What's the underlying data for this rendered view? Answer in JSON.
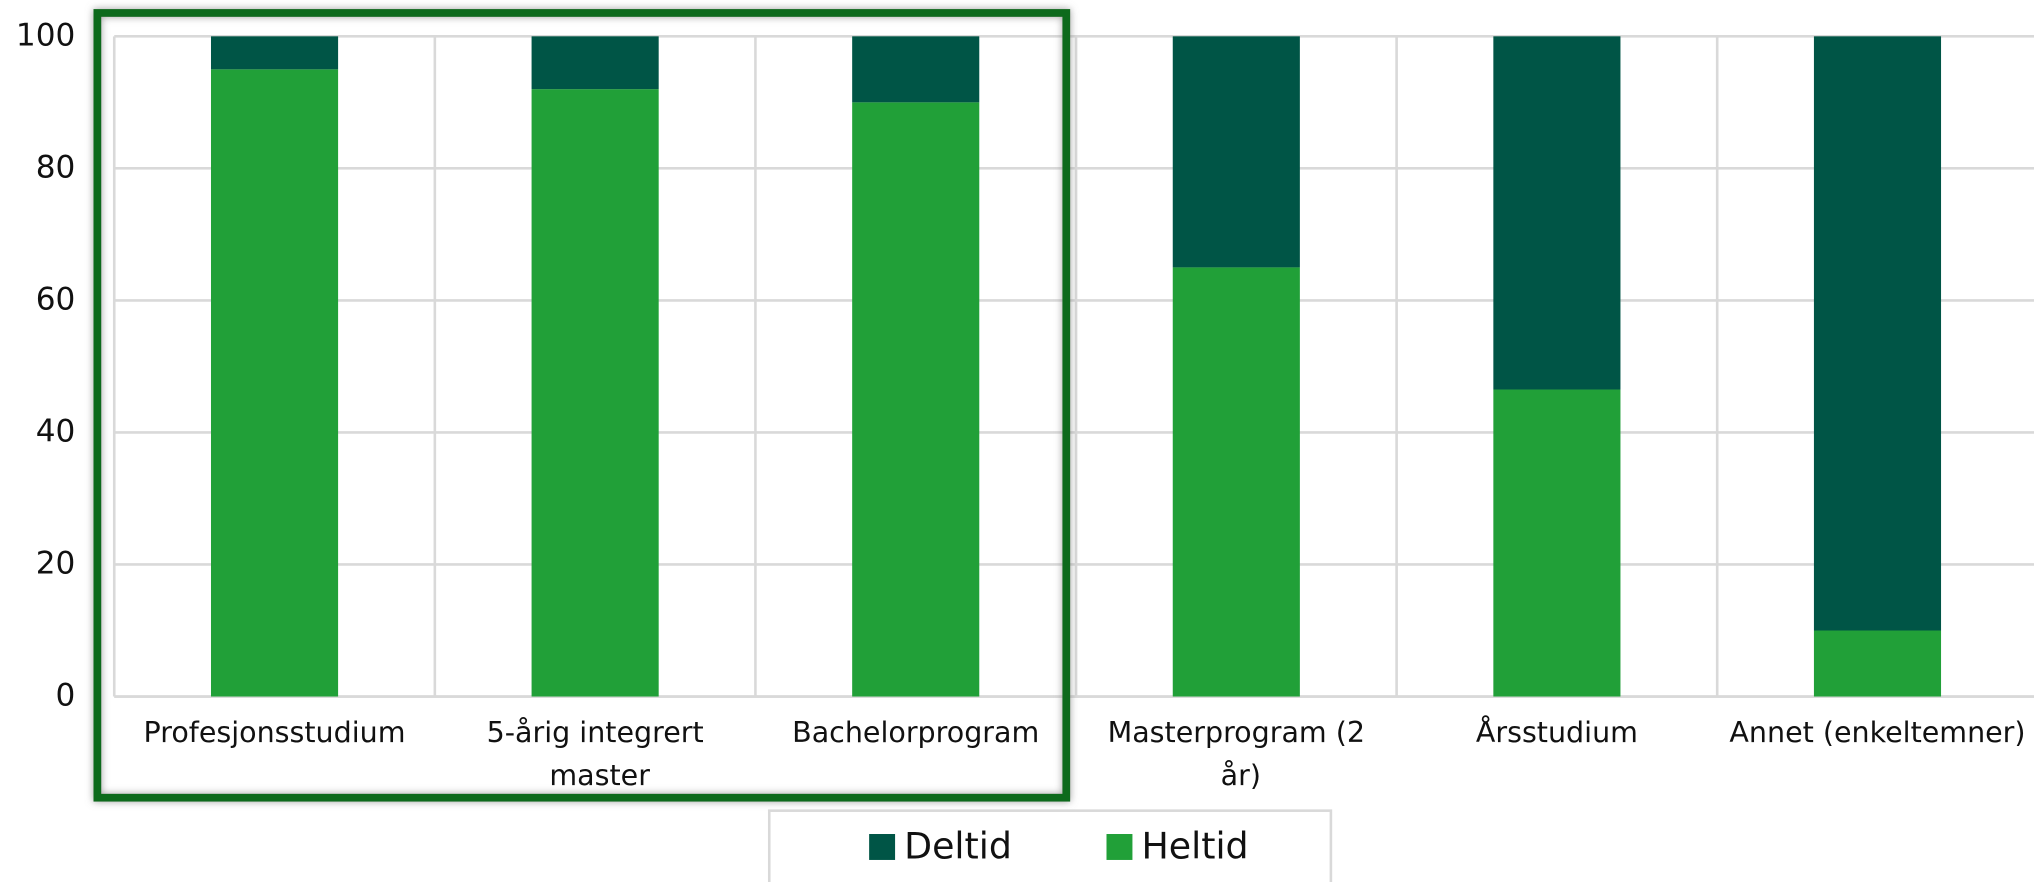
{
  "chart_data": {
    "type": "stacked_bar",
    "categories": [
      "Profesjonsstudium",
      "5-årig integrert master",
      "Bachelorprogram",
      "Masterprogram (2 år)",
      "Årsstudium",
      "Annet (enkeltemner)"
    ],
    "series": [
      {
        "name": "Heltid",
        "color": "#21a038",
        "values": [
          95,
          92,
          90,
          65,
          46.5,
          10
        ]
      },
      {
        "name": "Deltid",
        "color": "#005546",
        "values": [
          5,
          8,
          10,
          35,
          53.5,
          90
        ]
      }
    ],
    "ylim": [
      0,
      100
    ],
    "yticks": [
      0,
      20,
      40,
      60,
      80,
      100
    ],
    "grid": true,
    "legend": "bottom"
  }
}
